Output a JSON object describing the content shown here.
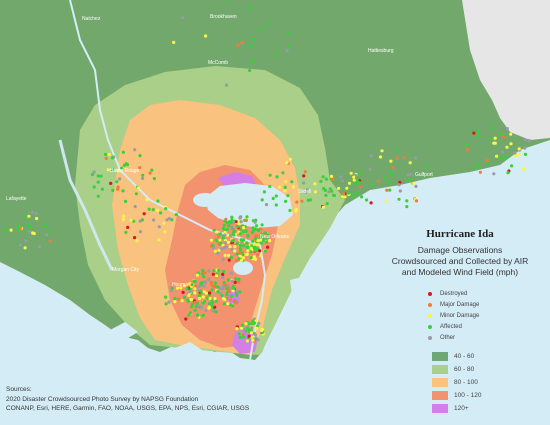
{
  "title": "Hurricane Ida",
  "subtitle_lines": [
    "Damage Observations",
    "Crowdsourced and Collected by AIR",
    "and Modeled Wind Field (mph)"
  ],
  "observation_legend": [
    {
      "label": "Destroyed",
      "color": "#d7191c"
    },
    {
      "label": "Major Damage",
      "color": "#f07c3c"
    },
    {
      "label": "Minor Damage",
      "color": "#f7f74a"
    },
    {
      "label": "Affected",
      "color": "#39d13a"
    },
    {
      "label": "Other",
      "color": "#9a9aa8"
    }
  ],
  "wind_legend": [
    {
      "label": "40 - 60",
      "color": "#6ea777"
    },
    {
      "label": "60 - 80",
      "color": "#a9cf88"
    },
    {
      "label": "80 - 100",
      "color": "#f9c27e"
    },
    {
      "label": "100 - 120",
      "color": "#f2926e"
    },
    {
      "label": "120+",
      "color": "#d37fe6"
    }
  ],
  "sources": {
    "heading": "Sources:",
    "line1": "2020 Disaster Crowdsourced Photo Survey by NAPSG Foundation",
    "credits": "CONANP, Esri, HERE, Garmin, FAO, NOAA, USGS, EPA, NPS, Esri, CGIAR, USGS"
  },
  "place_labels": [
    {
      "text": "Baton Rouge"
    },
    {
      "text": "New Orleans"
    },
    {
      "text": "Houma"
    },
    {
      "text": "Morgan City"
    },
    {
      "text": "Slidell"
    },
    {
      "text": "McComb"
    },
    {
      "text": "Brookhaven"
    },
    {
      "text": "Natchez"
    },
    {
      "text": "Hattiesburg"
    },
    {
      "text": "Gulfport"
    },
    {
      "text": "Lafayette"
    }
  ],
  "colors": {
    "land": "#72a86c",
    "water": "#d4ecf6",
    "mississippi_land": "#e6e6e6"
  }
}
